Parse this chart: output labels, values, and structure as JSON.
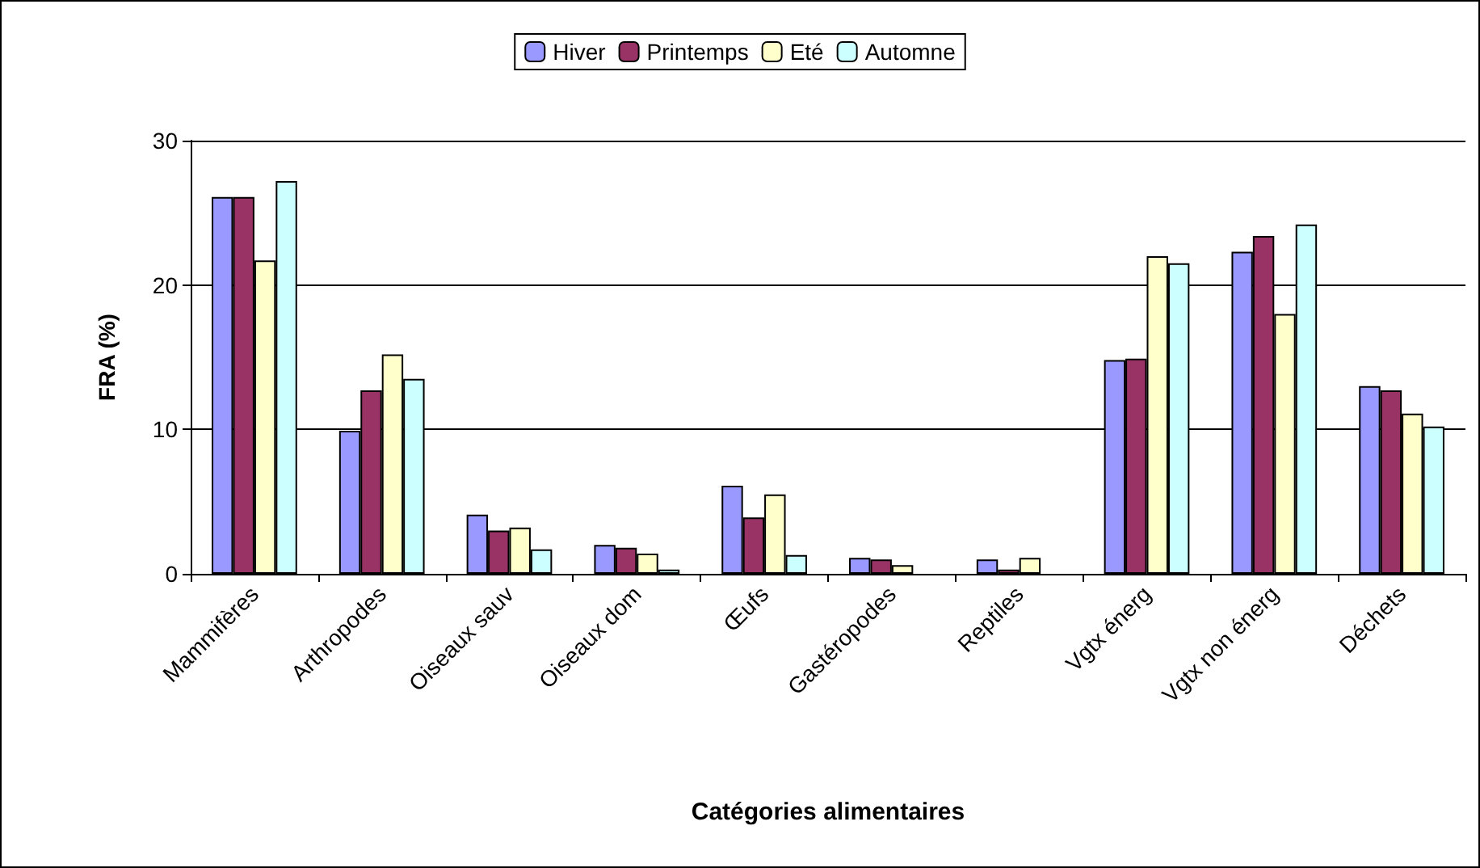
{
  "chart_data": {
    "type": "bar",
    "xlabel": "Catégories alimentaires",
    "ylabel": "FRA (%)",
    "categories": [
      "Mammifères",
      "Arthropodes",
      "Oiseaux sauv",
      "Oiseaux dom",
      "Œufs",
      "Gastéropodes",
      "Reptiles",
      "Vgtx énerg",
      "Vgtx non énerg",
      "Déchets"
    ],
    "series": [
      {
        "name": "Hiver",
        "color": "#9999ff",
        "values": [
          26.1,
          9.9,
          4.1,
          2.0,
          6.1,
          1.1,
          1.0,
          14.8,
          22.3,
          13.0
        ]
      },
      {
        "name": "Printemps",
        "color": "#993366",
        "values": [
          26.1,
          12.7,
          3.0,
          1.8,
          3.9,
          1.0,
          0.3,
          14.9,
          23.4,
          12.7
        ]
      },
      {
        "name": "Eté",
        "color": "#ffffcc",
        "values": [
          21.7,
          15.2,
          3.2,
          1.4,
          5.5,
          0.6,
          1.1,
          22.0,
          18.0,
          11.1
        ]
      },
      {
        "name": "Automne",
        "color": "#ccffff",
        "values": [
          27.2,
          13.5,
          1.7,
          0.3,
          1.3,
          null,
          null,
          21.5,
          24.2,
          10.2
        ]
      }
    ],
    "ylim": [
      0,
      30
    ],
    "yticks": [
      0,
      10,
      20,
      30
    ],
    "grid": "y",
    "legend": "top"
  }
}
